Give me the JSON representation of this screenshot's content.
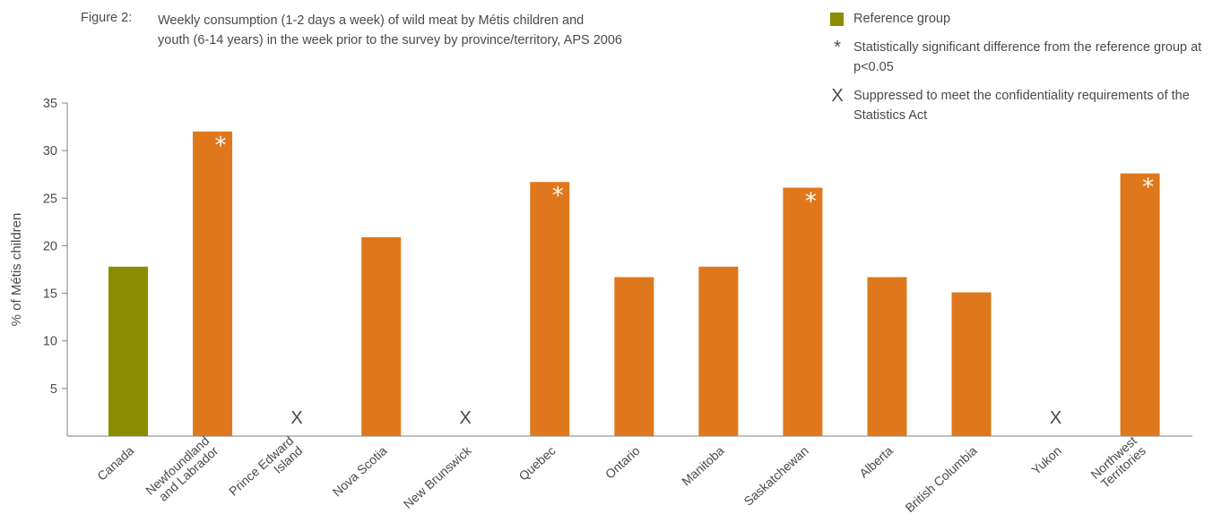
{
  "figure": {
    "label": "Figure 2:",
    "title_line1": "Weekly consumption (1-2 days a week) of wild meat by Métis children and",
    "title_line2": "youth (6-14 years) in the week prior to the survey by province/territory, APS 2006"
  },
  "legend": {
    "items": [
      {
        "symbol": "swatch",
        "label": "Reference group"
      },
      {
        "symbol": "*",
        "label": "Statistically significant difference from the reference group at p<0.05"
      },
      {
        "symbol": "X",
        "label": "Suppressed to meet the confidentiality requirements of the Statistics Act"
      }
    ]
  },
  "colors": {
    "reference": "#8c8c00",
    "bar": "#df781c",
    "axis": "#7f7f7f",
    "text": "#4a4a4a",
    "marker_on_bar": "#ffffff"
  },
  "chart_data": {
    "type": "bar",
    "ylabel": "% of Métis children",
    "xlabel": "",
    "ylim": [
      0,
      35
    ],
    "yticks": [
      5,
      10,
      15,
      20,
      25,
      30,
      35
    ],
    "grid": false,
    "legend_position": "top-right",
    "categories": [
      [
        "Canada"
      ],
      [
        "Newfoundland",
        "and Labrador"
      ],
      [
        "Prince Edward",
        "Island"
      ],
      [
        "Nova Scotia"
      ],
      [
        "New Brunswick"
      ],
      [
        "Quebec"
      ],
      [
        "Ontario"
      ],
      [
        "Manitoba"
      ],
      [
        "Saskatchewan"
      ],
      [
        "Alberta"
      ],
      [
        "British Columbia"
      ],
      [
        "Yukon"
      ],
      [
        "Northwest",
        "Territories"
      ]
    ],
    "values": [
      17.8,
      32.0,
      null,
      20.9,
      null,
      26.7,
      16.7,
      17.8,
      26.1,
      16.7,
      15.1,
      null,
      27.6
    ],
    "markers": [
      "",
      "*",
      "X",
      "",
      "X",
      "*",
      "",
      "",
      "*",
      "",
      "",
      "X",
      "*"
    ],
    "reference": [
      true,
      false,
      false,
      false,
      false,
      false,
      false,
      false,
      false,
      false,
      false,
      false,
      false
    ]
  }
}
